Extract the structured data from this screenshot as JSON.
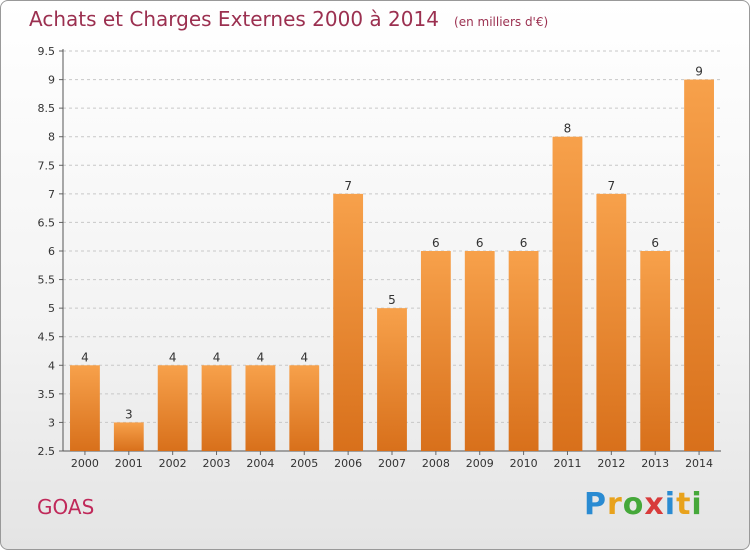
{
  "header": {
    "title": "Achats et Charges Externes 2000 à 2014",
    "unit": "(en milliers d'€)"
  },
  "footer": {
    "place": "GOAS",
    "logo_text": "Proxiti",
    "logo_letters": [
      {
        "ch": "P",
        "color": "#2a8bd2"
      },
      {
        "ch": "r",
        "color": "#e8a21c"
      },
      {
        "ch": "o",
        "color": "#45a83a"
      },
      {
        "ch": "x",
        "color": "#d83b3b"
      },
      {
        "ch": "i",
        "color": "#2a8bd2"
      },
      {
        "ch": "t",
        "color": "#e8a21c"
      },
      {
        "ch": "i",
        "color": "#45a83a"
      }
    ]
  },
  "colors": {
    "bar_light": "#f7a14b",
    "bar_dark": "#d8701b",
    "title": "#9b3050",
    "place": "#c0295a"
  },
  "chart_data": {
    "type": "bar",
    "title": "Achats et Charges Externes 2000 à 2014",
    "subtitle": "(en milliers d'€)",
    "categories": [
      "2000",
      "2001",
      "2002",
      "2003",
      "2004",
      "2005",
      "2006",
      "2007",
      "2008",
      "2009",
      "2010",
      "2011",
      "2012",
      "2013",
      "2014"
    ],
    "values": [
      4,
      3,
      4,
      4,
      4,
      4,
      7,
      5,
      6,
      6,
      6,
      8,
      7,
      6,
      9
    ],
    "data_labels": [
      "4",
      "3",
      "4",
      "4",
      "4",
      "4",
      "7",
      "5",
      "6",
      "6",
      "6",
      "8",
      "7",
      "6",
      "9"
    ],
    "ylim": [
      2.5,
      9.5
    ],
    "yticks": [
      2.5,
      3,
      3.5,
      4,
      4.5,
      5,
      5.5,
      6,
      6.5,
      7,
      7.5,
      8,
      8.5,
      9,
      9.5
    ],
    "ytick_labels": [
      "2.5",
      "3",
      "3.5",
      "4",
      "4.5",
      "5",
      "5.5",
      "6",
      "6.5",
      "7",
      "7.5",
      "8",
      "8.5",
      "9",
      "9.5"
    ],
    "grid": true,
    "xlabel": "",
    "ylabel": ""
  }
}
